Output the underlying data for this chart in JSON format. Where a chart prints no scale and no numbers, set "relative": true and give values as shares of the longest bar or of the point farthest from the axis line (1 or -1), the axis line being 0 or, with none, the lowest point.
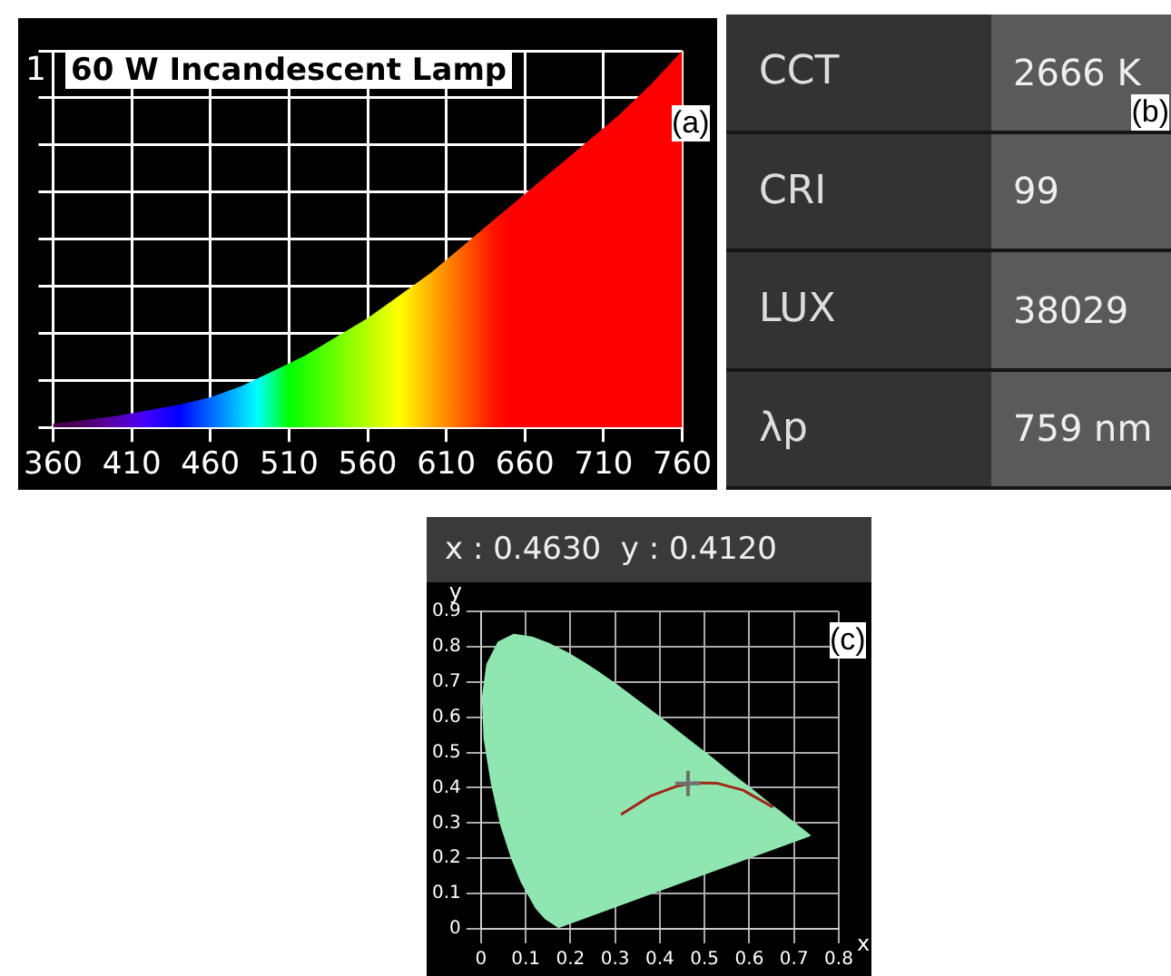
{
  "chart_data": [
    {
      "type": "area",
      "title": "60 W Incandescent Lamp",
      "x": [
        360,
        380,
        400,
        420,
        440,
        460,
        480,
        500,
        520,
        540,
        560,
        580,
        600,
        620,
        640,
        660,
        680,
        700,
        720,
        740,
        760
      ],
      "values": [
        0.01,
        0.02,
        0.03,
        0.045,
        0.06,
        0.08,
        0.11,
        0.15,
        0.19,
        0.24,
        0.29,
        0.35,
        0.41,
        0.48,
        0.55,
        0.62,
        0.69,
        0.76,
        0.83,
        0.91,
        1
      ],
      "relative": true,
      "xlim": [
        360,
        760
      ],
      "xticks": [
        360,
        410,
        460,
        510,
        560,
        610,
        660,
        710,
        760
      ],
      "grid": true,
      "tick_labels": "x",
      "annotations": [
        "1",
        "(a)"
      ]
    },
    {
      "type": "other",
      "annotations": [
        "CCT",
        "2666 K",
        "CRI",
        "99",
        "LUX",
        "38029",
        "λp",
        "759 nm",
        "(b)"
      ]
    },
    {
      "type": "scatter",
      "title": "x : 0.4630  y : 0.4120",
      "xlabel": "x",
      "ylabel": "y",
      "series": [
        {
          "type": "area",
          "color": "#8fe6b0",
          "x": [
            0.174,
            0.144,
            0.124,
            0.091,
            0.069,
            0.045,
            0.024,
            0.008,
            0.004,
            0.014,
            0.039,
            0.074,
            0.114,
            0.155,
            0.193,
            0.23,
            0.266,
            0.302,
            0.337,
            0.373,
            0.409,
            0.444,
            0.479,
            0.513,
            0.545,
            0.575,
            0.603,
            0.627,
            0.648,
            0.666,
            0.68,
            0.735,
            0.174
          ],
          "values": [
            0.005,
            0.03,
            0.058,
            0.133,
            0.201,
            0.295,
            0.413,
            0.538,
            0.655,
            0.75,
            0.812,
            0.834,
            0.826,
            0.806,
            0.782,
            0.754,
            0.724,
            0.692,
            0.659,
            0.625,
            0.59,
            0.555,
            0.52,
            0.487,
            0.454,
            0.424,
            0.397,
            0.373,
            0.351,
            0.334,
            0.32,
            0.265,
            0.005
          ]
        },
        {
          "type": "line",
          "color": "#a02818",
          "x": [
            0.313,
            0.38,
            0.437,
            0.477,
            0.527,
            0.586,
            0.653
          ],
          "values": [
            0.324,
            0.377,
            0.404,
            0.414,
            0.413,
            0.393,
            0.345
          ]
        },
        {
          "type": "scatter",
          "color": "#707070",
          "marker": "cross",
          "x": [
            0.463
          ],
          "values": [
            0.412
          ]
        }
      ],
      "xlim": [
        0,
        0.8
      ],
      "ylim": [
        0,
        0.9
      ],
      "xticks": [
        0,
        0.1,
        0.2,
        0.3,
        0.4,
        0.5,
        0.6,
        0.7,
        0.8
      ],
      "yticks": [
        0,
        0.1,
        0.2,
        0.3,
        0.4,
        0.5,
        0.6,
        0.7,
        0.8,
        0.9
      ],
      "grid": true,
      "annotations": [
        "(c)"
      ]
    }
  ]
}
